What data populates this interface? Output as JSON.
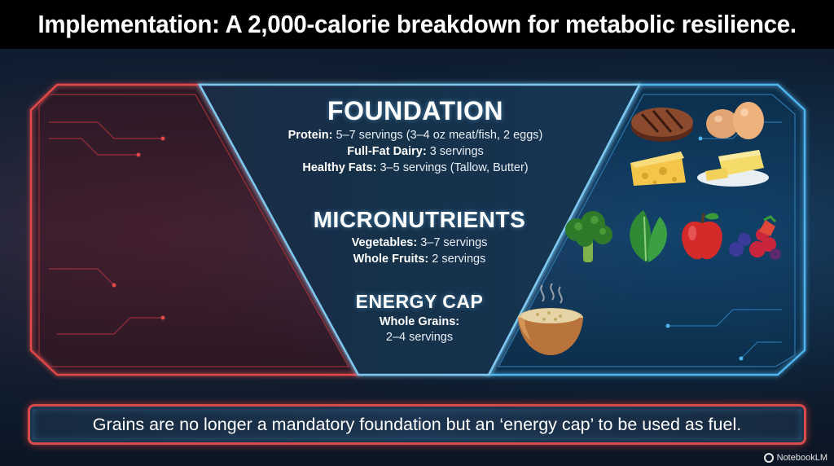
{
  "title": "Implementation: A 2,000-calorie breakdown for metabolic resilience.",
  "tiers": {
    "foundation": {
      "heading": "FOUNDATION",
      "lines": [
        {
          "label": "Protein:",
          "text": "5–7 servings (3–4 oz meat/fish, 2 eggs)"
        },
        {
          "label": "Full-Fat Dairy:",
          "text": "3 servings"
        },
        {
          "label": "Healthy Fats:",
          "text": "3–5 servings (Tallow, Butter)"
        }
      ],
      "icons": [
        "steak-icon",
        "eggs-icon",
        "cheese-icon",
        "butter-icon"
      ]
    },
    "micronutrients": {
      "heading": "MICRONUTRIENTS",
      "lines": [
        {
          "label": "Vegetables:",
          "text": "3–7 servings"
        },
        {
          "label": "Whole Fruits:",
          "text": "2 servings"
        }
      ],
      "icons": [
        "broccoli-icon",
        "spinach-icon",
        "apple-icon",
        "berries-icon"
      ]
    },
    "energy_cap": {
      "heading": "ENERGY CAP",
      "label": "Whole Grains:",
      "text": "2–4 servings",
      "icons": [
        "grain-bowl-icon"
      ]
    }
  },
  "caption": "Grains are no longer a mandatory foundation but an ‘energy cap’ to be used as fuel.",
  "brand": "NotebookLM",
  "colors": {
    "red_accent": "#e04848",
    "blue_accent": "#4fb4ee",
    "background": "#0b1624"
  }
}
